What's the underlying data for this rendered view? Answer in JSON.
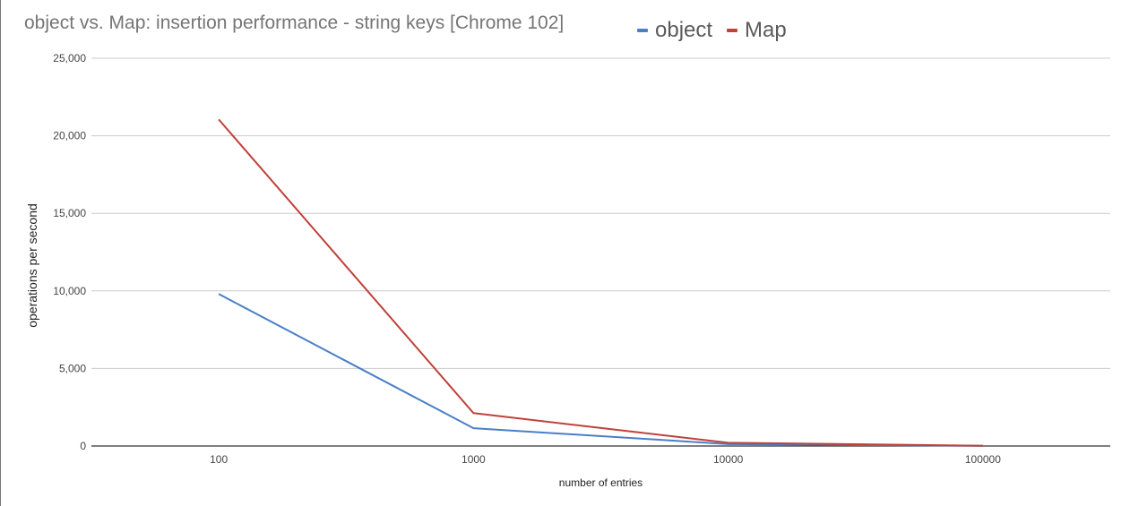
{
  "chart_data": {
    "type": "line",
    "title": "object vs. Map: insertion performance - string keys [Chrome 102]",
    "xlabel": "number of entries",
    "ylabel": "operations per second",
    "categories": [
      "100",
      "1000",
      "10000",
      "100000"
    ],
    "series": [
      {
        "name": "object",
        "color": "#4a7fc8",
        "values": [
          9800,
          1150,
          120,
          10
        ]
      },
      {
        "name": "Map",
        "color": "#c0413b",
        "values": [
          21050,
          2120,
          210,
          20
        ]
      }
    ],
    "ylim": [
      0,
      25000
    ],
    "yticks": [
      "0",
      "5,000",
      "10,000",
      "15,000",
      "20,000",
      "25,000"
    ],
    "ytick_values": [
      0,
      5000,
      10000,
      15000,
      20000,
      25000
    ],
    "grid": true,
    "legend_position": "top"
  }
}
